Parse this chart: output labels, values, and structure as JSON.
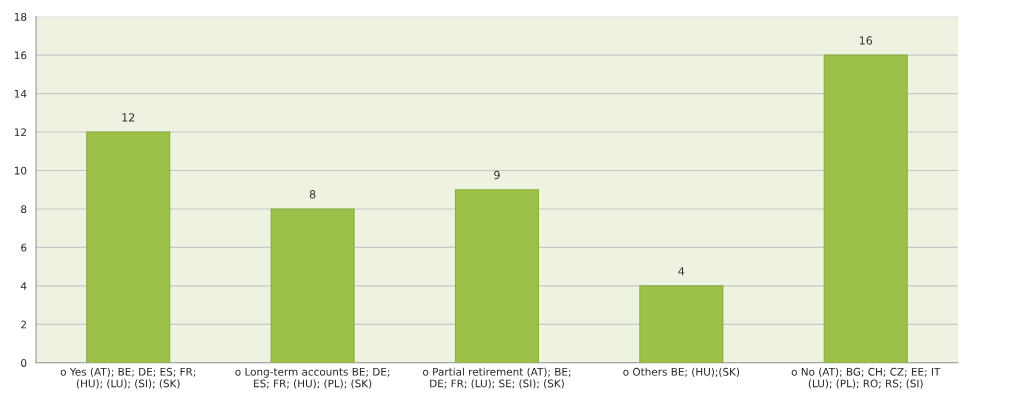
{
  "chart_data": {
    "type": "bar",
    "categories": [
      "o Yes (AT); BE; DE; ES; FR;\n(HU); (LU); (SI); (SK)",
      "o Long-term accounts BE; DE;\nES; FR; (HU); (PL); (SK)",
      "o Partial retirement (AT); BE;\nDE; FR; (LU); SE; (SI); (SK)",
      "o Others BE; (HU);(SK)",
      "o No (AT); BG; CH; CZ; EE; IT\n(LU); (PL); RO; RS; (SI)"
    ],
    "values": [
      12,
      8,
      9,
      4,
      16
    ],
    "color": "#9cc04a",
    "ylim": [
      0,
      18
    ],
    "yticks": [
      0,
      2,
      4,
      6,
      8,
      10,
      12,
      14,
      16,
      18
    ],
    "grid": "y",
    "data_labels": true
  }
}
